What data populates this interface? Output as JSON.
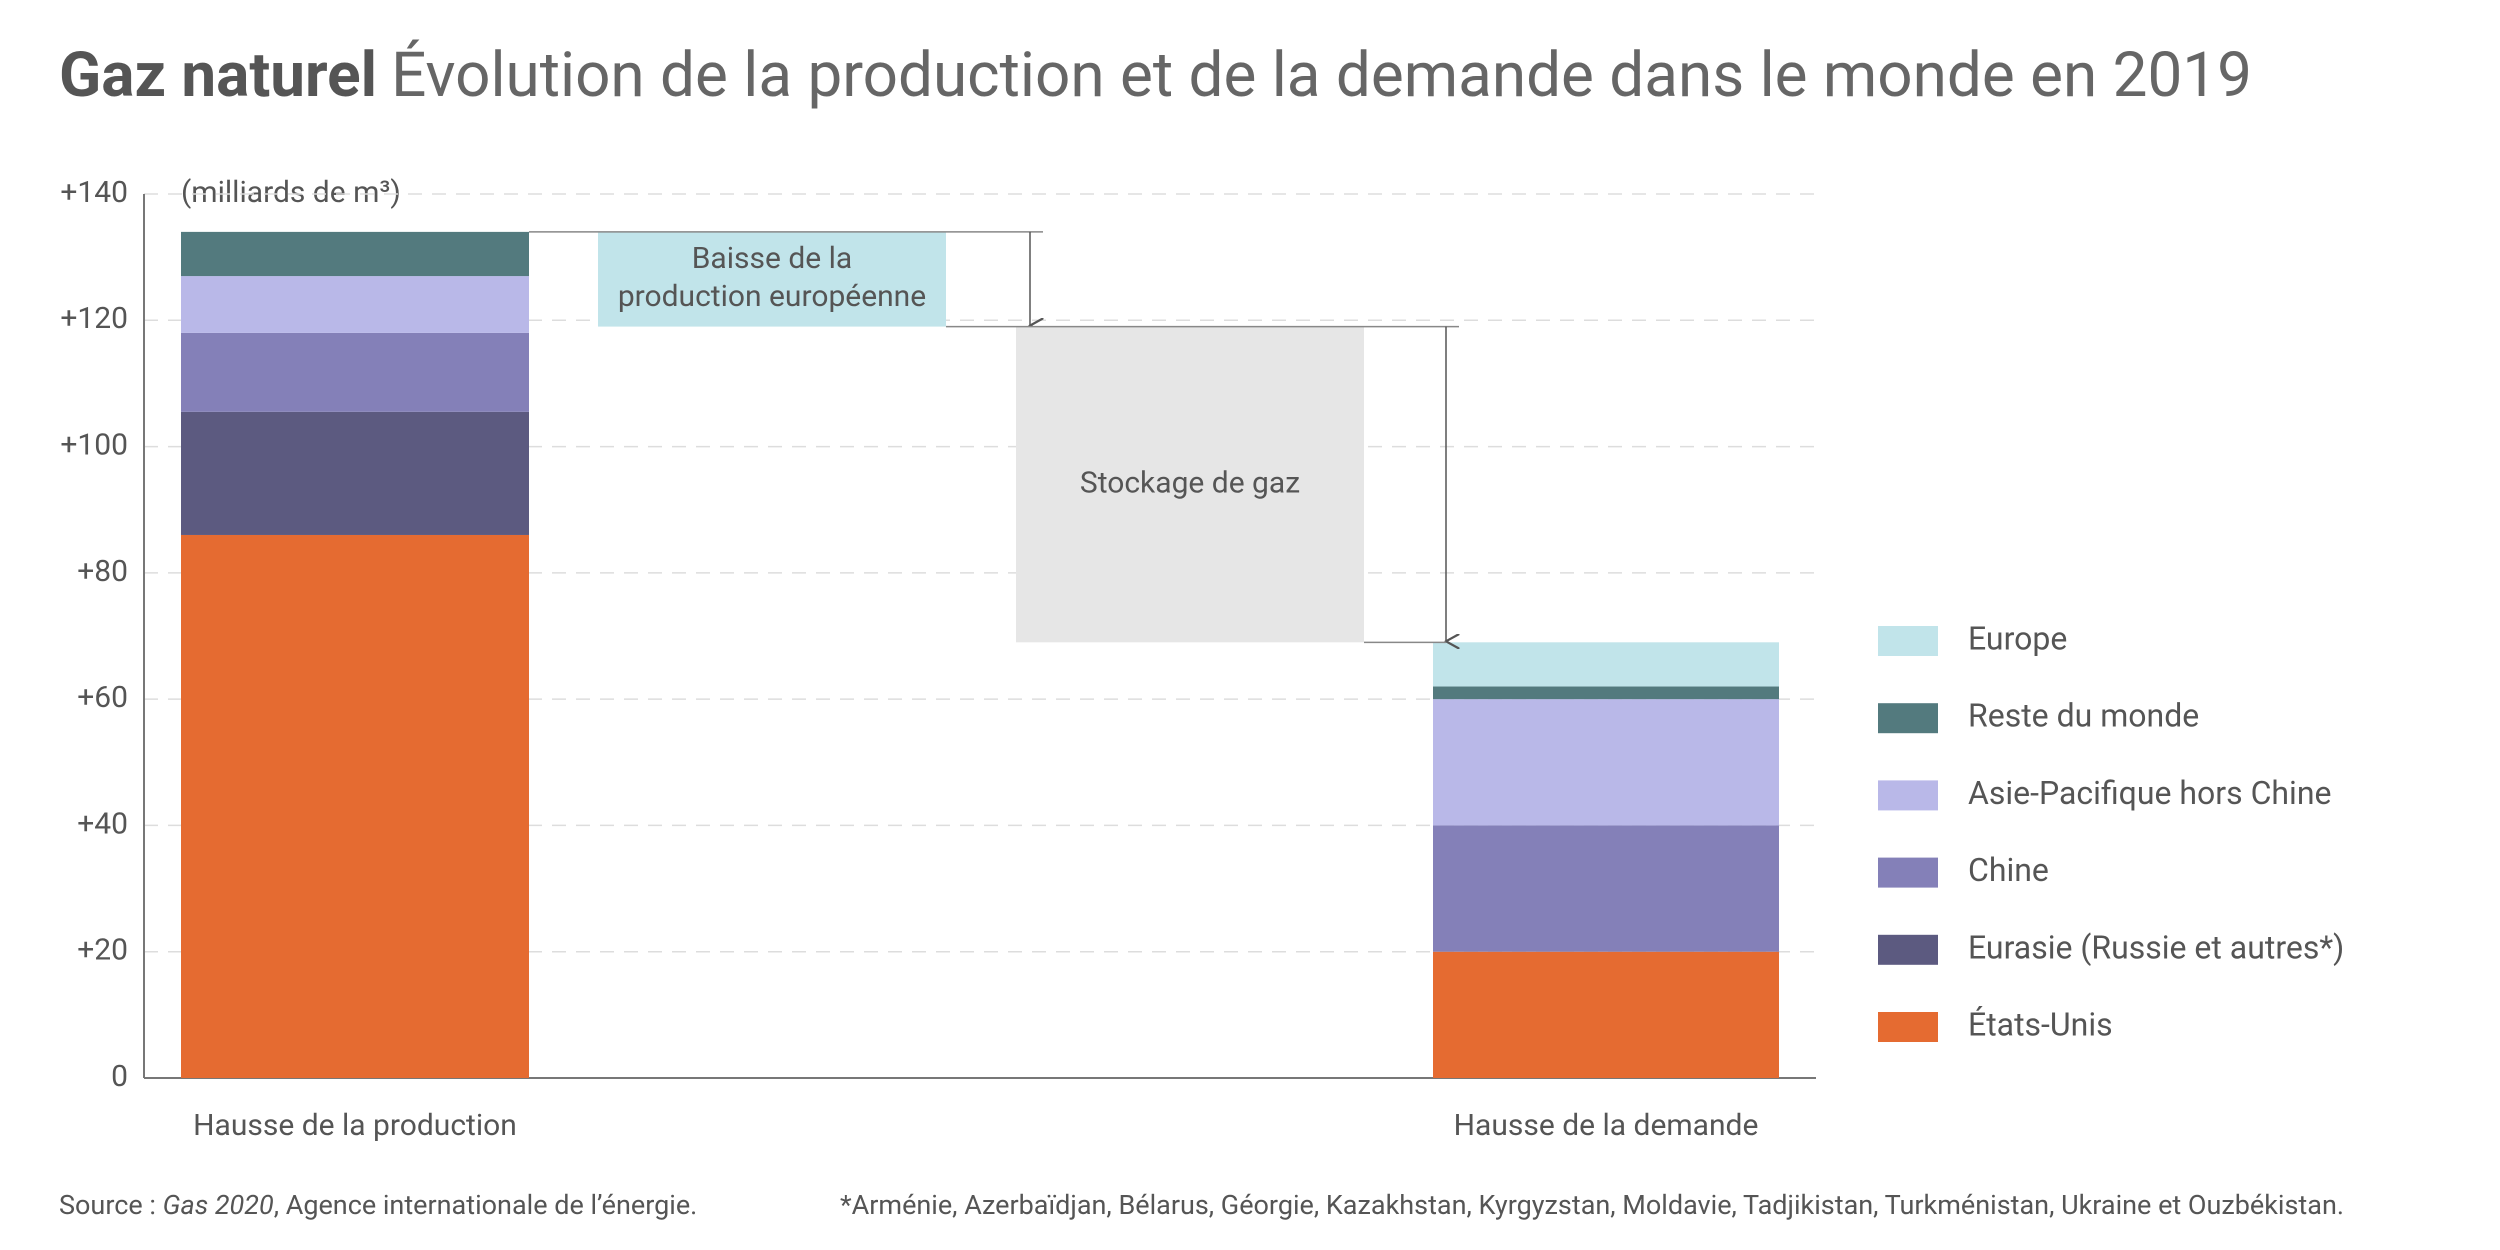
{
  "chart_data": {
    "type": "bar",
    "stacked": true,
    "title": "Gaz naturel",
    "subtitle": "Évolution de la production et de la demande dans le monde en 2019",
    "y_label": "(milliards de m³)",
    "categories": [
      "Hausse de la production",
      "Hausse de la demande"
    ],
    "series": [
      {
        "name": "États-Unis",
        "color": "#e56b31",
        "values": [
          86,
          20
        ]
      },
      {
        "name": "Eurasie (Russie et autres*)",
        "color": "#5c5a80",
        "values": [
          19.5,
          0
        ]
      },
      {
        "name": "Chine",
        "color": "#8480b8",
        "values": [
          12.5,
          20
        ]
      },
      {
        "name": "Asie-Pacifique hors Chine",
        "color": "#b9b8e8",
        "values": [
          9,
          20
        ]
      },
      {
        "name": "Reste du monde",
        "color": "#537a7e",
        "values": [
          7,
          2
        ]
      },
      {
        "name": "Europe",
        "color": "#c1e4ea",
        "values": [
          0,
          7
        ]
      }
    ],
    "bridges": [
      {
        "label": [
          "Baisse de la",
          "production européenne"
        ],
        "value": -15,
        "color": "#c1e4ea"
      },
      {
        "label": [
          "Stockage de gaz"
        ],
        "value": -50,
        "color": "#e6e6e6"
      }
    ],
    "ylim": [
      0,
      140
    ],
    "yticks": [
      0,
      {
        "value": 20,
        "label": "+20"
      },
      {
        "value": 40,
        "label": "+40"
      },
      {
        "value": 60,
        "label": "+60"
      },
      {
        "value": 80,
        "label": "+80"
      },
      {
        "value": 100,
        "label": "+100"
      },
      {
        "value": 120,
        "label": "+120"
      },
      {
        "value": 140,
        "label": "+140"
      }
    ],
    "grid": true,
    "legend": "right",
    "source": {
      "prefix": "Source : ",
      "work": "Gas 2020",
      "rest": ", Agence internationale de l’énergie."
    },
    "footnote": "*Arménie, Azerbaïdjan, Bélarus, Géorgie, Kazakhstan, Kyrgyzstan, Moldavie, Tadjikistan, Turkménistan, Ukraine et Ouzbékistan."
  }
}
